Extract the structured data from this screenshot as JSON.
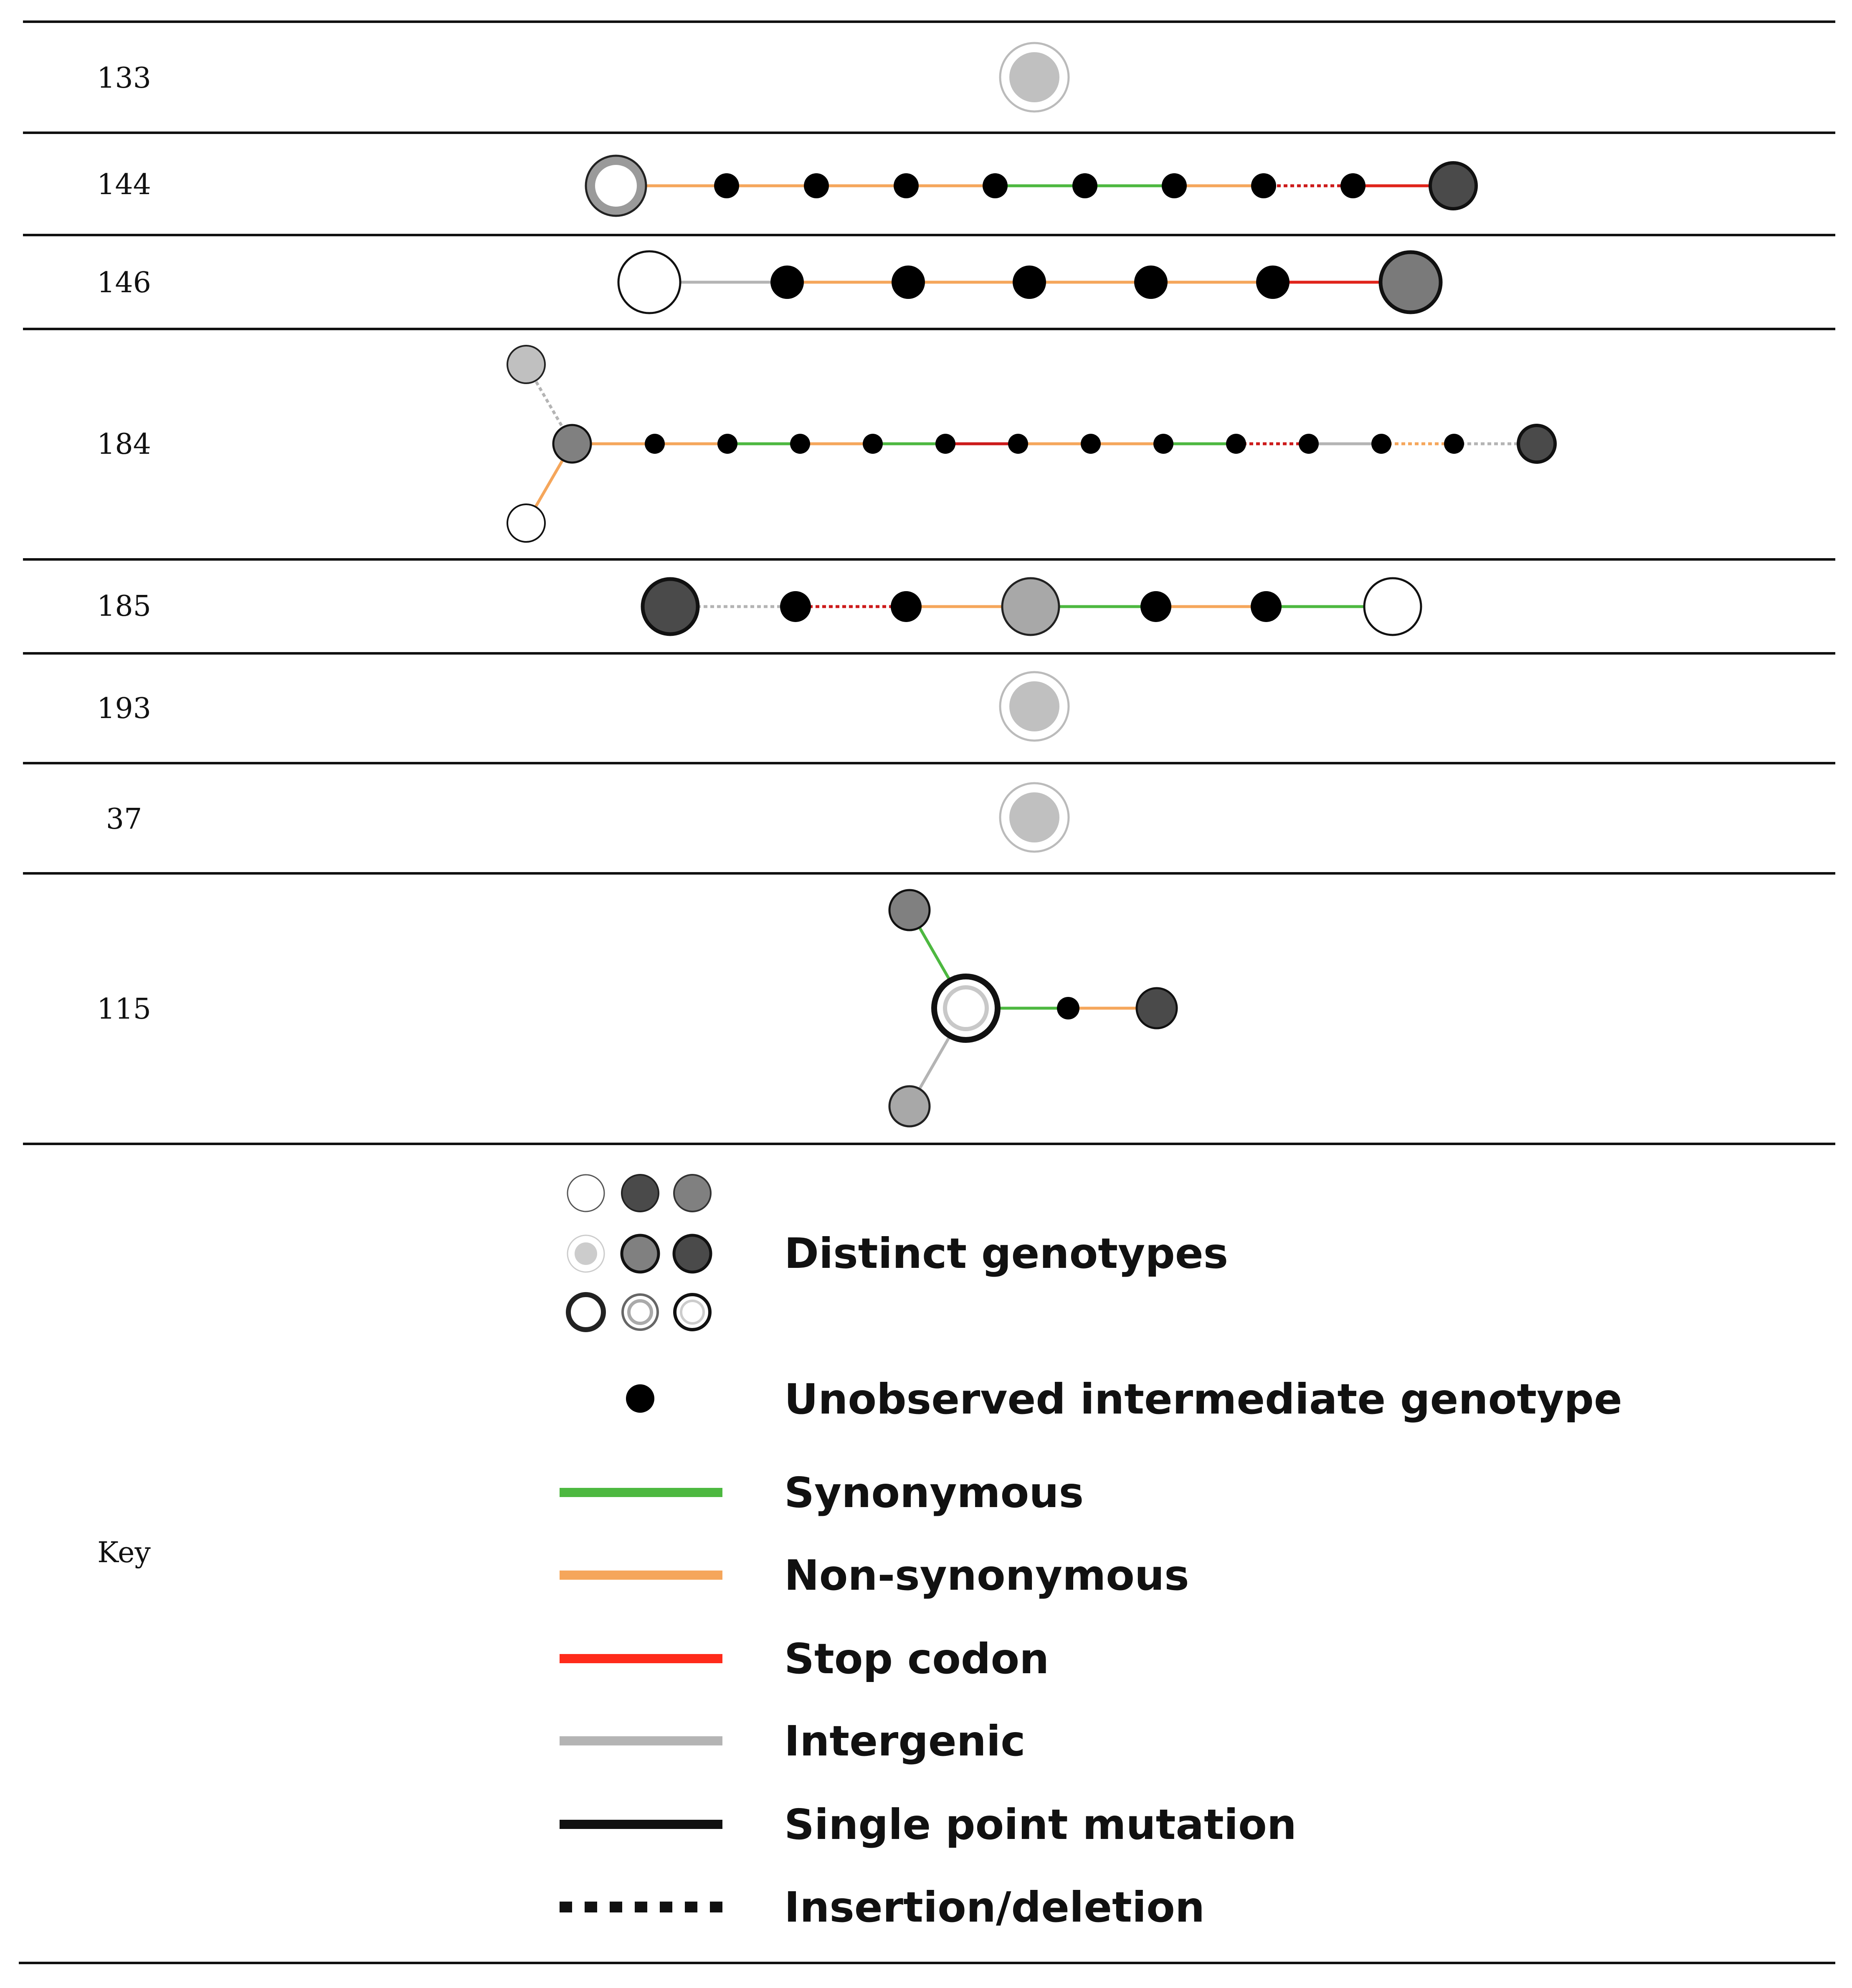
{
  "rows": [
    {
      "label": "133"
    },
    {
      "label": "144"
    },
    {
      "label": "146"
    },
    {
      "label": "184"
    },
    {
      "label": "185"
    },
    {
      "label": "193"
    },
    {
      "label": "37"
    },
    {
      "label": "115"
    },
    {
      "label": "Key"
    }
  ],
  "key": {
    "distinct_genotypes": "Distinct genotypes",
    "unobserved": "Unobserved intermediate genotype",
    "synonymous": "Synonymous",
    "non_synonymous": "Non-synonymous",
    "stop_codon": "Stop codon",
    "intergenic": "Intergenic",
    "single_point": "Single point mutation",
    "indel": "Insertion/deletion"
  },
  "colors": {
    "synonymous": "#4db840",
    "non_synonymous": "#f5a65b",
    "stop_codon": "#ff2a1a",
    "stop_codon_dark": "#cc1a1a",
    "intergenic": "#b4b4b4",
    "single_point": "#111111"
  }
}
